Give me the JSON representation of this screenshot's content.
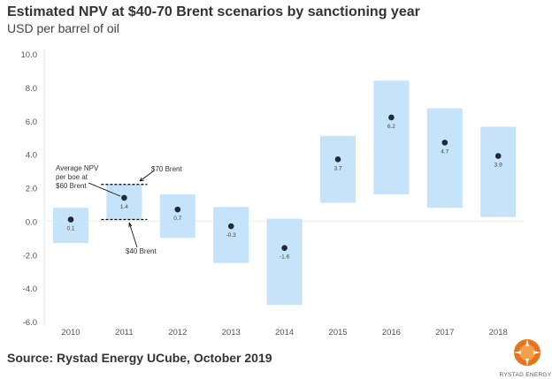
{
  "title": "Estimated NPV at $40-70 Brent scenarios by sanctioning year",
  "subtitle": "USD per barrel of oil",
  "source": "Source: Rystad Energy UCube, October 2019",
  "logo_text": "RYSTAD ENERGY",
  "colors": {
    "range_bar": "#c5e3fb",
    "dot": "#1f2a3a",
    "axis_text": "#555555"
  },
  "chart_data": {
    "type": "range-bar",
    "categories": [
      "2010",
      "2011",
      "2012",
      "2013",
      "2014",
      "2015",
      "2016",
      "2017",
      "2018"
    ],
    "series": [
      {
        "name": "$70 Brent",
        "values": [
          0.8,
          2.2,
          1.6,
          0.85,
          0.15,
          5.1,
          8.4,
          6.75,
          5.65
        ]
      },
      {
        "name": "$40 Brent",
        "values": [
          -1.3,
          0.1,
          -1.0,
          -2.5,
          -5.0,
          1.1,
          1.6,
          0.8,
          0.25
        ]
      },
      {
        "name": "Average NPV per boe at $60 Brent",
        "values": [
          0.1,
          1.4,
          0.7,
          -0.3,
          -1.6,
          3.7,
          6.2,
          4.7,
          3.9
        ]
      }
    ],
    "data_labels": [
      "0.1",
      "1.4",
      "0.7",
      "-0.3",
      "-1.6",
      "3.7",
      "6.2",
      "4.7",
      "3.9"
    ],
    "ylim": [
      -6,
      10
    ],
    "yticks": [
      "10.0",
      "8.0",
      "6.0",
      "4.0",
      "2.0",
      "0.0",
      "-2.0",
      "-4.0",
      "-6.0"
    ],
    "ytick_values": [
      10,
      8,
      6,
      4,
      2,
      0,
      -2,
      -4,
      -6
    ],
    "annotations": {
      "avg_line1": "Average NPV",
      "avg_line2": "per boe at",
      "avg_line3": "$60 Brent",
      "high": "$70 Brent",
      "low": "$40 Brent"
    },
    "grid": false
  }
}
